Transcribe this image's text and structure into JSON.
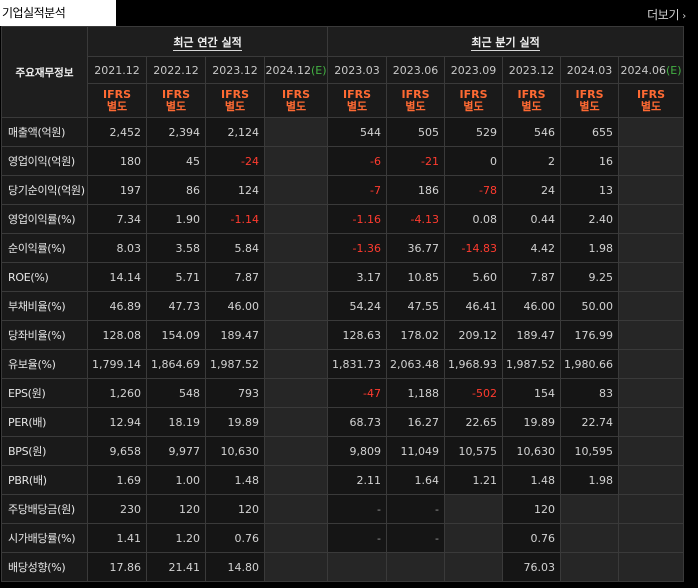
{
  "title": "기업실적분석",
  "more_label": "더보기",
  "more_arrow": "›",
  "header": {
    "section_label": "주요재무정보",
    "annual_label": "최근 연간 실적",
    "quarter_label": "최근 분기 실적",
    "annual_periods": [
      "2021.12",
      "2022.12",
      "2023.12",
      "2024.12"
    ],
    "annual_est_suffix": "(E)",
    "quarter_periods": [
      "2023.03",
      "2023.06",
      "2023.09",
      "2023.12",
      "2024.03",
      "2024.06"
    ],
    "quarter_est_suffix": "(E)",
    "ifrs_top": "IFRS",
    "ifrs_bottom": "별도"
  },
  "rows": [
    {
      "label": "매출액(억원)",
      "values": [
        "2,452",
        "2,394",
        "2,124",
        "",
        "544",
        "505",
        "529",
        "546",
        "655",
        ""
      ]
    },
    {
      "label": "영업이익(억원)",
      "values": [
        "180",
        "45",
        "-24",
        "",
        "-6",
        "-21",
        "0",
        "2",
        "16",
        ""
      ]
    },
    {
      "label": "당기순이익(억원)",
      "values": [
        "197",
        "86",
        "124",
        "",
        "-7",
        "186",
        "-78",
        "24",
        "13",
        ""
      ]
    },
    {
      "label": "영업이익률(%)",
      "values": [
        "7.34",
        "1.90",
        "-1.14",
        "",
        "-1.16",
        "-4.13",
        "0.08",
        "0.44",
        "2.40",
        ""
      ]
    },
    {
      "label": "순이익률(%)",
      "values": [
        "8.03",
        "3.58",
        "5.84",
        "",
        "-1.36",
        "36.77",
        "-14.83",
        "4.42",
        "1.98",
        ""
      ]
    },
    {
      "label": "ROE(%)",
      "values": [
        "14.14",
        "5.71",
        "7.87",
        "",
        "3.17",
        "10.85",
        "5.60",
        "7.87",
        "9.25",
        ""
      ]
    },
    {
      "label": "부채비율(%)",
      "values": [
        "46.89",
        "47.73",
        "46.00",
        "",
        "54.24",
        "47.55",
        "46.41",
        "46.00",
        "50.00",
        ""
      ]
    },
    {
      "label": "당좌비율(%)",
      "values": [
        "128.08",
        "154.09",
        "189.47",
        "",
        "128.63",
        "178.02",
        "209.12",
        "189.47",
        "176.99",
        ""
      ]
    },
    {
      "label": "유보율(%)",
      "values": [
        "1,799.14",
        "1,864.69",
        "1,987.52",
        "",
        "1,831.73",
        "2,063.48",
        "1,968.93",
        "1,987.52",
        "1,980.66",
        ""
      ]
    },
    {
      "label": "EPS(원)",
      "values": [
        "1,260",
        "548",
        "793",
        "",
        "-47",
        "1,188",
        "-502",
        "154",
        "83",
        ""
      ]
    },
    {
      "label": "PER(배)",
      "values": [
        "12.94",
        "18.19",
        "19.89",
        "",
        "68.73",
        "16.27",
        "22.65",
        "19.89",
        "22.74",
        ""
      ]
    },
    {
      "label": "BPS(원)",
      "values": [
        "9,658",
        "9,977",
        "10,630",
        "",
        "9,809",
        "11,049",
        "10,575",
        "10,630",
        "10,595",
        ""
      ]
    },
    {
      "label": "PBR(배)",
      "values": [
        "1.69",
        "1.00",
        "1.48",
        "",
        "2.11",
        "1.64",
        "1.21",
        "1.48",
        "1.98",
        ""
      ]
    },
    {
      "label": "주당배당금(원)",
      "values": [
        "230",
        "120",
        "120",
        "",
        "-",
        "-",
        "",
        "120",
        "",
        ""
      ]
    },
    {
      "label": "시가배당률(%)",
      "values": [
        "1.41",
        "1.20",
        "0.76",
        "",
        "-",
        "-",
        "",
        "0.76",
        "",
        ""
      ]
    },
    {
      "label": "배당성향(%)",
      "values": [
        "17.86",
        "21.41",
        "14.80",
        "",
        "",
        "",
        "",
        "76.03",
        "",
        ""
      ]
    }
  ],
  "colors": {
    "negative": "#ff3b2f",
    "estimate": "#43b143",
    "ifrs": "#ff6a33"
  }
}
